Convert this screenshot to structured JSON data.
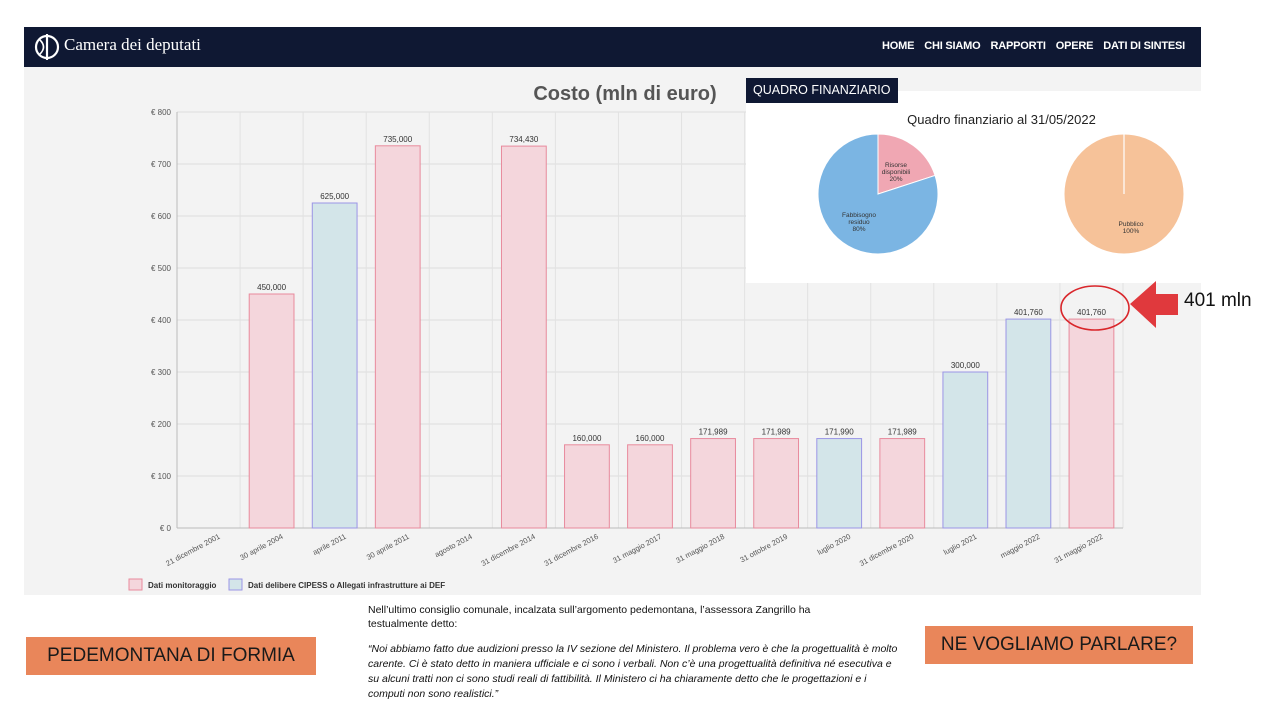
{
  "header": {
    "brand": "Camera dei deputati",
    "nav": [
      "HOME",
      "CHI SIAMO",
      "RAPPORTI",
      "OPERE",
      "DATI DI SINTESI"
    ]
  },
  "quadro_button": "QUADRO FINANZIARIO",
  "pie_title": "Quadro finanziario al 31/05/2022",
  "pie_left": [
    {
      "label_lines": [
        "Risorse",
        "disponibili",
        "20%"
      ],
      "share": 20,
      "color": "#f0a7b3"
    },
    {
      "label_lines": [
        "Fabbisogno",
        "residuo",
        "80%"
      ],
      "share": 80,
      "color": "#7bb5e3"
    }
  ],
  "pie_right": [
    {
      "label_lines": [
        "Pubblico",
        "100%"
      ],
      "share": 100,
      "color": "#f6c299"
    }
  ],
  "callout": "401 mln",
  "tag_left": "PEDEMONTANA DI FORMIA",
  "tag_right": "NE VOGLIAMO PARLARE?",
  "quote_intro": "Nell’ultimo consiglio comunale, incalzata sull’argomento pedemontana, l’assessora Zangrillo ha testualmente detto:",
  "quote_text": "“Noi abbiamo fatto due audizioni presso la IV sezione del Ministero. Il problema vero è che la progettualità è molto carente. Ci è stato detto in maniera ufficiale e ci sono i verbali. Non c’è una progettualità definitiva né esecutiva e su alcuni tratti non ci sono studi reali di fattibilità. Il Ministero ci ha chiaramente detto che le progettazioni e i computi non sono realistici.”",
  "colors": {
    "monitoraggio_fill": "#f4d6dc",
    "monitoraggio_stroke": "#e88a9c",
    "cipess_fill": "#d3e5e9",
    "cipess_stroke": "#9b95e6",
    "navbar": "#0f1833",
    "tag": "#e9865a",
    "arrow": "#e0393d"
  },
  "chart_data": {
    "type": "bar",
    "title": "Costo (mln di euro)",
    "ylim": [
      0,
      800
    ],
    "yticks": [
      "€ 0",
      "€ 100",
      "€ 200",
      "€ 300",
      "€ 400",
      "€ 500",
      "€ 600",
      "€ 700",
      "€ 800"
    ],
    "grid": true,
    "legend_position": "bottom-left",
    "legend": [
      "Dati monitoraggio",
      "Dati delibere CIPESS o Allegati infrastrutture ai DEF"
    ],
    "categories": [
      "21 dicembre 2001",
      "30 aprile 2004",
      "aprile 2011",
      "30 aprile 2011",
      "agosto 2014",
      "31 dicembre 2014",
      "31 dicembre 2016",
      "31 maggio 2017",
      "31 maggio 2018",
      "31 ottobre 2019",
      "luglio 2020",
      "31 dicembre 2020",
      "luglio 2021",
      "maggio 2022",
      "31 maggio 2022"
    ],
    "values": [
      null,
      450,
      625,
      735,
      null,
      734.43,
      160,
      160,
      171.989,
      171.989,
      171.99,
      171.989,
      300,
      401.76,
      401.76
    ],
    "value_labels": [
      "",
      "450,000",
      "625,000",
      "735,000",
      "",
      "734,430",
      "160,000",
      "160,000",
      "171,989",
      "171,989",
      "171,990",
      "171,989",
      "300,000",
      "401,760",
      "401,760"
    ],
    "series_of_bar": [
      "monitoraggio",
      "monitoraggio",
      "cipess",
      "monitoraggio",
      "monitoraggio",
      "monitoraggio",
      "monitoraggio",
      "monitoraggio",
      "monitoraggio",
      "monitoraggio",
      "cipess",
      "monitoraggio",
      "cipess",
      "cipess",
      "monitoraggio"
    ]
  }
}
